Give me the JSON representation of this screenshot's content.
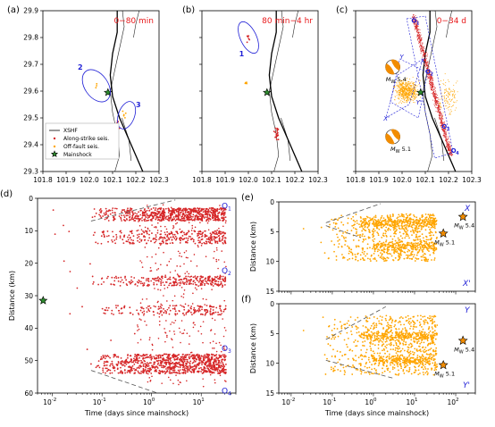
{
  "colors": {
    "along_strike": "#d62728",
    "off_fault": "#ffa500",
    "mainshock": "#2e8b2e",
    "annotation_red": "#e8191b",
    "annotation_blue": "#1f1fd6",
    "beachball": "#f28c00"
  },
  "map_axes": {
    "x_ticks": [
      "101.8",
      "101.9",
      "102.0",
      "102.1",
      "102.2",
      "102.3"
    ],
    "y_ticks": [
      "29.3",
      "29.4",
      "29.5",
      "29.6",
      "29.7",
      "29.8",
      "29.9"
    ]
  },
  "legend": {
    "fault": "XSHF",
    "along": "Along-strike seis.",
    "off": "Off-fault seis.",
    "mainshock": "Mainshock"
  },
  "panels": {
    "a": {
      "letter": "(a)",
      "title": "0−80 min",
      "clusters": [
        "2",
        "3"
      ]
    },
    "b": {
      "letter": "(b)",
      "title": "80 min−4 hr",
      "clusters": [
        "1"
      ]
    },
    "c": {
      "letter": "(c)",
      "title": "0−34 d",
      "beachball_labels": [
        "M_W 5.4",
        "M_W 5.1"
      ],
      "profile_labels": [
        "X",
        "X'",
        "Y",
        "Y'"
      ],
      "segment_labels": [
        "O1",
        "O2",
        "O3",
        "O4"
      ]
    },
    "d": {
      "letter": "(d)",
      "ylabel": "Distance (km)",
      "xlabel": "Time (days since mainshock)",
      "segment_labels": [
        "O1",
        "O2",
        "O3",
        "O4"
      ]
    },
    "e": {
      "letter": "(e)",
      "ylabel": "Distance (km)",
      "labels": [
        "X",
        "X'"
      ],
      "mags": [
        "M_W 5.4",
        "M_W 5.1"
      ]
    },
    "f": {
      "letter": "(f)",
      "ylabel": "Distance (km)",
      "xlabel": "Time (days since mainshock)",
      "labels": [
        "Y",
        "Y'"
      ],
      "mags": [
        "M_W 5.4",
        "M_W 5.1"
      ]
    }
  },
  "chart_data": [
    {
      "type": "scatter",
      "panel": "a",
      "title": "0−80 min",
      "xlim": [
        101.8,
        102.3
      ],
      "ylim": [
        29.3,
        29.9
      ],
      "mainshock": [
        102.08,
        29.595
      ],
      "clusters": [
        {
          "name": "2",
          "center": [
            102.03,
            29.62
          ]
        },
        {
          "name": "3",
          "center": [
            102.16,
            29.51
          ]
        }
      ]
    },
    {
      "type": "scatter",
      "panel": "b",
      "title": "80 min−4 hr",
      "xlim": [
        101.8,
        102.3
      ],
      "ylim": [
        29.3,
        29.9
      ],
      "mainshock": [
        102.08,
        29.595
      ],
      "clusters": [
        {
          "name": "1",
          "center": [
            102.0,
            29.8
          ]
        }
      ]
    },
    {
      "type": "scatter",
      "panel": "c",
      "title": "0−34 d",
      "xlim": [
        101.8,
        102.3
      ],
      "ylim": [
        29.3,
        29.9
      ],
      "mainshock": [
        102.08,
        29.595
      ],
      "focal_mechanisms": [
        {
          "label": "M_W 5.4",
          "lonlat": [
            101.96,
            29.68
          ]
        },
        {
          "label": "M_W 5.1",
          "lonlat": [
            101.96,
            29.44
          ]
        }
      ]
    },
    {
      "type": "scatter",
      "panel": "d",
      "xscale": "log",
      "xlim": [
        0.005,
        50
      ],
      "ylim": [
        60,
        0
      ],
      "xlabel": "Time (days since mainshock)",
      "ylabel": "Distance (km)",
      "mainshock": [
        0.0065,
        31.5
      ],
      "segments": [
        {
          "name": "O1",
          "distance": 2
        },
        {
          "name": "O2",
          "distance": 22
        },
        {
          "name": "O3",
          "distance": 46
        },
        {
          "name": "O4",
          "distance": 59
        }
      ],
      "series": [
        {
          "name": "Along-strike seis.",
          "bands_km": [
            [
              3,
              7
            ],
            [
              10,
              14
            ],
            [
              24,
              27
            ],
            [
              33,
              36
            ],
            [
              48,
              54
            ]
          ]
        }
      ]
    },
    {
      "type": "scatter",
      "panel": "e",
      "xscale": "log",
      "xlim": [
        0.005,
        300
      ],
      "ylim": [
        15,
        0
      ],
      "ylabel": "Distance (km)",
      "events": [
        {
          "label": "M_W 5.4",
          "time": 150,
          "distance": 2.5
        },
        {
          "label": "M_W 5.1",
          "time": 50,
          "distance": 5.3
        }
      ],
      "series": [
        {
          "name": "Off-fault seis.",
          "range_km": [
            2,
            10
          ]
        }
      ]
    },
    {
      "type": "scatter",
      "panel": "f",
      "xscale": "log",
      "xlim": [
        0.005,
        300
      ],
      "ylim": [
        15,
        0
      ],
      "xlabel": "Time (days since mainshock)",
      "ylabel": "Distance (km)",
      "events": [
        {
          "label": "M_W 5.4",
          "time": 150,
          "distance": 6.2
        },
        {
          "label": "M_W 5.1",
          "time": 50,
          "distance": 10.3
        }
      ],
      "series": [
        {
          "name": "Off-fault seis.",
          "range_km": [
            2,
            12
          ]
        }
      ]
    }
  ]
}
